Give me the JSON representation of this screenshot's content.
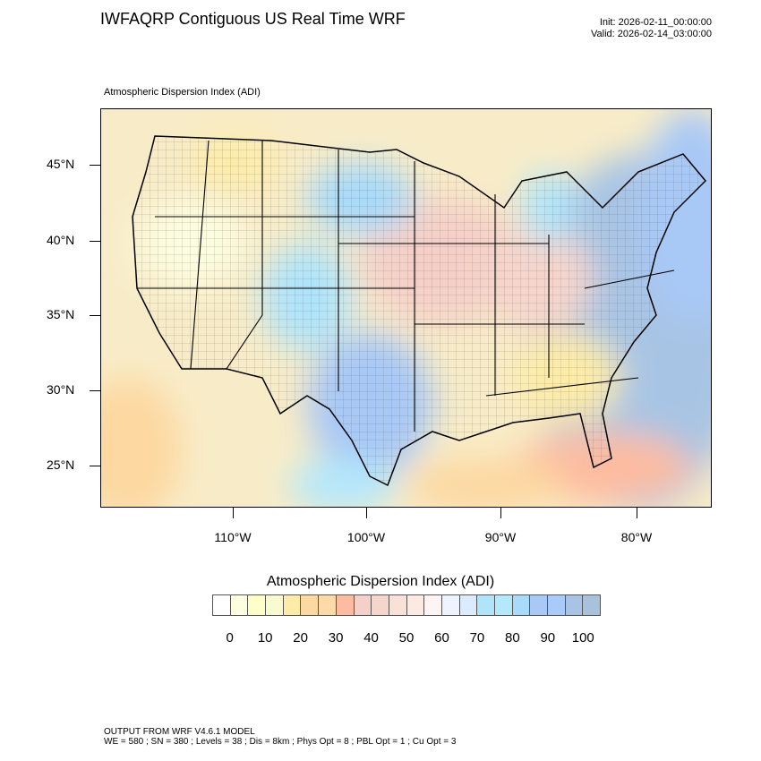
{
  "header": {
    "title": "IWFAQRP Contiguous US Real Time WRF",
    "init": "Init: 2026-02-11_00:00:00",
    "valid": "Valid: 2026-02-14_03:00:00",
    "subtitle": "Atmospheric Dispersion Index   (ADI)"
  },
  "map": {
    "lat_labels": [
      "45°N",
      "40°N",
      "35°N",
      "30°N",
      "25°N"
    ],
    "lon_labels": [
      "110°W",
      "100°W",
      "90°W",
      "80°W"
    ]
  },
  "colorbar": {
    "title": "Atmospheric Dispersion Index  (ADI)",
    "colors": [
      "#ffffff",
      "#fdfde0",
      "#fefec8",
      "#fafad0",
      "#fdeca8",
      "#fdd8a0",
      "#fddaa8",
      "#fdbca0",
      "#f5d0c8",
      "#f5d5cc",
      "#f8e2d8",
      "#fbe9e2",
      "#fef4f4",
      "#eef3fe",
      "#dcecfe",
      "#b0e4fa",
      "#b4e8fc",
      "#a8dafa",
      "#a8c8f6",
      "#a8cbfa",
      "#a8c4e4",
      "#a8c2dc"
    ],
    "labels": [
      "0",
      "10",
      "20",
      "30",
      "40",
      "50",
      "60",
      "70",
      "80",
      "90",
      "100"
    ]
  },
  "footer": {
    "line1": "OUTPUT FROM WRF V4.6.1 MODEL",
    "line2": "WE = 580 ; SN = 380 ; Levels = 38 ; Dis = 8km ; Phys Opt = 8 ; PBL Opt = 1 ; Cu Opt = 3"
  }
}
